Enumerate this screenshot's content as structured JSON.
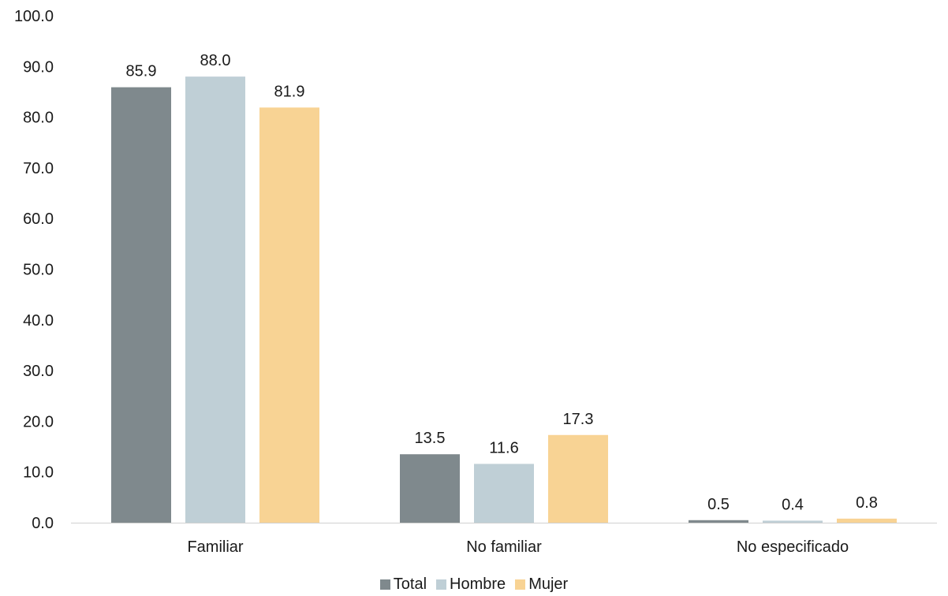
{
  "chart_data": {
    "type": "bar",
    "categories": [
      "Familiar",
      "No familiar",
      "No especificado"
    ],
    "series": [
      {
        "name": "Total",
        "color": "#7f898d",
        "values": [
          85.9,
          13.5,
          0.5
        ]
      },
      {
        "name": "Hombre",
        "color": "#bfcfd6",
        "values": [
          88.0,
          11.6,
          0.4
        ]
      },
      {
        "name": "Mujer",
        "color": "#f8d394",
        "values": [
          81.9,
          17.3,
          0.8
        ]
      }
    ],
    "yticks": [
      "0.0",
      "10.0",
      "20.0",
      "30.0",
      "40.0",
      "50.0",
      "60.0",
      "70.0",
      "80.0",
      "90.0",
      "100.0"
    ],
    "ylim": [
      0,
      100
    ],
    "grid": false,
    "legend_position": "bottom",
    "title": "",
    "xlabel": "",
    "ylabel": ""
  }
}
